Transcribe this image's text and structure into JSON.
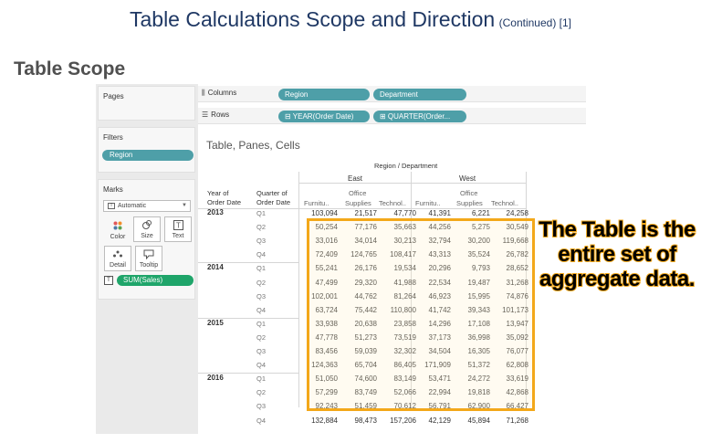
{
  "slide": {
    "title": "Table Calculations Scope and Direction",
    "title_suffix": "(Continued) [1]",
    "section_heading": "Table Scope",
    "callout": "The Table is the entire set of aggregate data.",
    "highlight_color": "#f3a81a",
    "title_color": "#1f3864"
  },
  "tableau": {
    "pages_label": "Pages",
    "filters_label": "Filters",
    "filter_pill": "Region",
    "marks_label": "Marks",
    "marks_type": "Automatic",
    "mark_buttons": [
      {
        "label": "Color",
        "icon": "color-dots-icon"
      },
      {
        "label": "Size",
        "icon": "size-icon"
      },
      {
        "label": "Text",
        "icon": "text-icon"
      },
      {
        "label": "Detail",
        "icon": "detail-icon"
      },
      {
        "label": "Tooltip",
        "icon": "tooltip-icon"
      }
    ],
    "sum_pill": "SUM(Sales)",
    "columns_label": "Columns",
    "columns_pills": [
      "Region",
      "Department"
    ],
    "rows_label": "Rows",
    "rows_pills": [
      "⊟ YEAR(Order Date)",
      "⊞ QUARTER(Order..."
    ],
    "view_title": "Table, Panes, Cells",
    "header_top": "Region / Department",
    "regions": [
      "East",
      "West"
    ],
    "year_header_1": "Year of",
    "year_header_2": "Order Date",
    "quarter_header_1": "Quarter of",
    "quarter_header_2": "Order Date",
    "departments_line1": [
      "",
      "Office",
      "",
      "",
      "Office",
      ""
    ],
    "departments_line2": [
      "Furnitu..",
      "Supplies",
      "Technol..",
      "Furnitu..",
      "Supplies",
      "Technol.."
    ],
    "pill_color": "#4e9fa8",
    "measure_color": "#1fa56a",
    "years": [
      {
        "year": "2013",
        "quarters": [
          {
            "q": "Q1",
            "values": [
              "103,094",
              "21,517",
              "47,770",
              "41,391",
              "6,221",
              "24,258"
            ]
          },
          {
            "q": "Q2",
            "values": [
              "50,254",
              "77,176",
              "35,663",
              "44,256",
              "5,275",
              "30,549"
            ]
          },
          {
            "q": "Q3",
            "values": [
              "33,016",
              "34,014",
              "30,213",
              "32,794",
              "30,200",
              "119,668"
            ]
          },
          {
            "q": "Q4",
            "values": [
              "72,409",
              "124,765",
              "108,417",
              "43,313",
              "35,524",
              "26,782"
            ]
          }
        ]
      },
      {
        "year": "2014",
        "quarters": [
          {
            "q": "Q1",
            "values": [
              "55,241",
              "26,176",
              "19,534",
              "20,296",
              "9,793",
              "28,652"
            ]
          },
          {
            "q": "Q2",
            "values": [
              "47,499",
              "29,320",
              "41,988",
              "22,534",
              "19,487",
              "31,268"
            ]
          },
          {
            "q": "Q3",
            "values": [
              "102,001",
              "44,762",
              "81,264",
              "46,923",
              "15,995",
              "74,876"
            ]
          },
          {
            "q": "Q4",
            "values": [
              "63,724",
              "75,442",
              "110,800",
              "41,742",
              "39,343",
              "101,173"
            ]
          }
        ]
      },
      {
        "year": "2015",
        "quarters": [
          {
            "q": "Q1",
            "values": [
              "33,938",
              "20,638",
              "23,858",
              "14,296",
              "17,108",
              "13,947"
            ]
          },
          {
            "q": "Q2",
            "values": [
              "47,778",
              "51,273",
              "73,519",
              "37,173",
              "36,998",
              "35,092"
            ]
          },
          {
            "q": "Q3",
            "values": [
              "83,456",
              "59,039",
              "32,302",
              "34,504",
              "16,305",
              "76,077"
            ]
          },
          {
            "q": "Q4",
            "values": [
              "124,363",
              "65,704",
              "86,405",
              "171,909",
              "51,372",
              "62,808"
            ]
          }
        ]
      },
      {
        "year": "2016",
        "quarters": [
          {
            "q": "Q1",
            "values": [
              "51,050",
              "74,600",
              "83,149",
              "53,471",
              "24,272",
              "33,619"
            ]
          },
          {
            "q": "Q2",
            "values": [
              "57,299",
              "83,749",
              "52,066",
              "22,994",
              "19,818",
              "42,868"
            ]
          },
          {
            "q": "Q3",
            "values": [
              "92,243",
              "51,459",
              "70,612",
              "56,791",
              "62,900",
              "66,427"
            ]
          },
          {
            "q": "Q4",
            "values": [
              "132,884",
              "98,473",
              "157,206",
              "42,129",
              "45,894",
              "71,268"
            ]
          }
        ]
      }
    ]
  }
}
